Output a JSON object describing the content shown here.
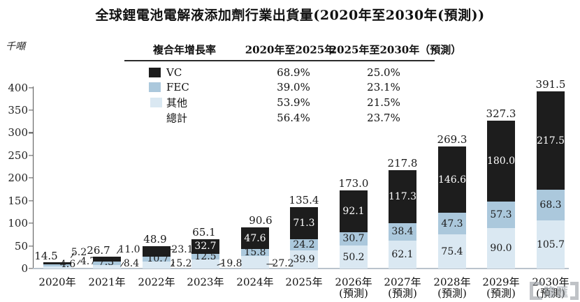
{
  "title": "全球鋰電池電解液添加劑行業出貨量(2020年至2030年(預測))",
  "y_axis_unit": "千噸",
  "cagr_table": {
    "header_metric": "複合年增長率",
    "header_period1": "2020年至2025年",
    "header_period2": "2025年至2030年（預測）",
    "rows": [
      {
        "label": "VC",
        "swatch": "vc",
        "p1": "68.9%",
        "p2": "25.0%"
      },
      {
        "label": "FEC",
        "swatch": "fec",
        "p1": "39.0%",
        "p2": "23.1%"
      },
      {
        "label": "其他",
        "swatch": "other",
        "p1": "53.9%",
        "p2": "21.5%"
      },
      {
        "label": "總計",
        "swatch": "none",
        "p1": "56.4%",
        "p2": "23.7%"
      }
    ]
  },
  "colors": {
    "vc": "#1d1d1d",
    "fec": "#abc8dc",
    "other": "#dae8f2",
    "axis": "#555555",
    "baseline": "#b9c3cc"
  },
  "watermark": {
    "text": "隆匯"
  },
  "chart_data": {
    "type": "bar",
    "stacked": true,
    "title": "全球鋰電池電解液添加劑行業出貨量(2020年至2030年(預測))",
    "ylabel": "千噸",
    "ylim": [
      0,
      400
    ],
    "yticks": [
      0,
      50,
      100,
      150,
      200,
      250,
      300,
      350,
      400
    ],
    "grid": false,
    "legend_position": "top-table",
    "categories": [
      "2020年",
      "2021年",
      "2022年",
      "2023年",
      "2024年",
      "2025年",
      "2026年",
      "2027年",
      "2028年",
      "2029年",
      "2030年"
    ],
    "forecast_note": "(預測)",
    "forecast_start_index": 6,
    "series": [
      {
        "name": "VC",
        "color_key": "vc",
        "values": [
          5.2,
          11.0,
          23.1,
          32.7,
          47.6,
          71.3,
          92.1,
          117.3,
          146.6,
          180.0,
          217.5
        ]
      },
      {
        "name": "FEC",
        "color_key": "fec",
        "values": [
          4.7,
          7.3,
          10.7,
          12.5,
          15.8,
          24.2,
          30.7,
          38.4,
          47.3,
          57.3,
          68.3
        ]
      },
      {
        "name": "其他",
        "color_key": "other",
        "values": [
          4.6,
          8.4,
          15.2,
          19.8,
          27.2,
          39.9,
          50.2,
          62.1,
          75.4,
          90.0,
          105.7
        ]
      }
    ],
    "totals": [
      14.5,
      26.7,
      48.9,
      65.1,
      90.6,
      135.4,
      173.0,
      217.8,
      269.3,
      327.3,
      391.5
    ],
    "cagr": {
      "VC": {
        "2020_2025": "68.9%",
        "2025_2030": "25.0%"
      },
      "FEC": {
        "2020_2025": "39.0%",
        "2025_2030": "23.1%"
      },
      "其他": {
        "2020_2025": "53.9%",
        "2025_2030": "21.5%"
      },
      "總計": {
        "2020_2025": "56.4%",
        "2025_2030": "23.7%"
      }
    }
  }
}
